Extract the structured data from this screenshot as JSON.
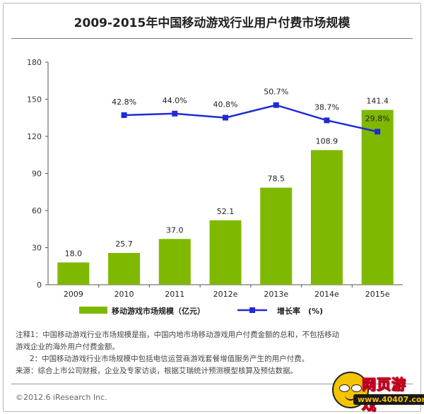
{
  "header": {
    "title": "2009-2015年中国移动游戏行业用户付费市场规模"
  },
  "chart_data": {
    "type": "bar",
    "categories": [
      "2009",
      "2010",
      "2011",
      "2012e",
      "2013e",
      "2014e",
      "2015e"
    ],
    "series": [
      {
        "name": "移动游戏市场规模（亿元）",
        "type": "bar",
        "axis": "left",
        "values": [
          18.0,
          25.7,
          37.0,
          52.1,
          78.5,
          108.9,
          141.4
        ],
        "labels": [
          "18.0",
          "25.7",
          "37.0",
          "52.1",
          "78.5",
          "108.9",
          "141.4"
        ],
        "color": "#7fb800"
      },
      {
        "name": "增长率　(%)",
        "type": "line",
        "axis": "right",
        "values": [
          null,
          42.8,
          44.0,
          40.8,
          50.7,
          38.7,
          29.8
        ],
        "labels": [
          "",
          "42.8%",
          "44.0%",
          "40.8%",
          "50.7%",
          "38.7%",
          "29.8%"
        ],
        "color": "#1f2bd6"
      }
    ],
    "yticks": [
      "0",
      "30",
      "60",
      "90",
      "120",
      "150",
      "180"
    ],
    "ylim": [
      0,
      180
    ],
    "legend_position": "bottom",
    "grid": false
  },
  "notes": {
    "line1": "注释1：中国移动游戏行业市场规模是指，中国内地市场移动游戏用户付费金额的总和，不包括移动",
    "line2": "游戏企业的海外用户付费金额。",
    "line3": "2：中国移动游戏行业市场规模中包括电信运营商游戏套餐增值服务产生的用户付费。",
    "line4": "来源：综合上市公司财报，企业及专家访谈，根据艾瑞统计预测模型核算及预估数据。"
  },
  "footer": {
    "copyright": "©2012.6 iResearch Inc."
  },
  "watermark": {
    "text": "网页游戏",
    "url": "www.40407.com"
  }
}
